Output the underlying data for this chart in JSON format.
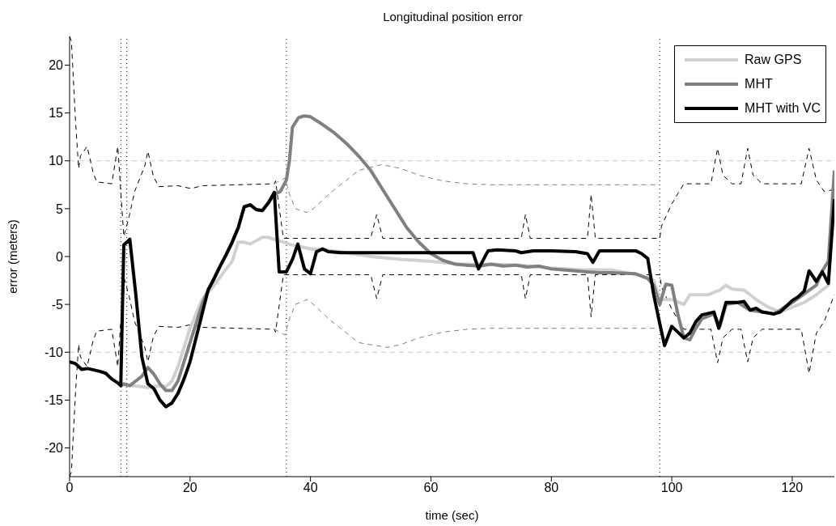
{
  "chart_data": {
    "type": "line",
    "title": "Longitudinal position error",
    "xlabel": "time (sec)",
    "ylabel": "error (meters)",
    "xlim": [
      0,
      127
    ],
    "xticks": [
      0,
      20,
      40,
      60,
      80,
      100,
      120
    ],
    "ylim": [
      -23,
      23
    ],
    "yticks": [
      -20,
      -15,
      -10,
      -5,
      0,
      5,
      10,
      15,
      20
    ],
    "grid": false,
    "legend": "top right",
    "marker": "none",
    "ref_lines": [
      {
        "axis": "y",
        "value": 10,
        "color": "#c8c8c8",
        "line_style": "dashed"
      },
      {
        "axis": "y",
        "value": -10,
        "color": "#c8c8c8",
        "line_style": "dashed"
      },
      {
        "axis": "x",
        "value": 8.5,
        "color": "#000000",
        "line_style": "dotted"
      },
      {
        "axis": "x",
        "value": 9.5,
        "color": "#000000",
        "line_style": "dotted"
      },
      {
        "axis": "x",
        "value": 36,
        "color": "#000000",
        "line_style": "dotted"
      },
      {
        "axis": "x",
        "value": 98,
        "color": "#000000",
        "line_style": "dotted"
      }
    ],
    "series": [
      {
        "color": "#000000",
        "line_style": "dashed",
        "x": [
          0,
          0.3,
          1,
          1.5,
          1.8,
          2.9,
          3.9,
          4.5,
          7,
          8,
          9,
          9.9,
          10.8,
          12.5,
          13,
          13.9,
          14.8,
          18,
          20.2,
          22,
          34,
          34.2,
          35.5,
          36,
          50,
          51,
          52,
          75,
          75.7,
          76.5,
          86,
          86.6,
          87.3,
          98,
          98.3,
          100,
          102,
          106.5,
          107.6,
          108.5,
          110,
          111.5,
          112.6,
          113.5,
          115,
          121.5,
          122.8,
          124,
          125.3,
          127
        ],
        "values": [
          23,
          22.5,
          14,
          9.2,
          10.5,
          11.5,
          8.8,
          7.8,
          7.6,
          11.5,
          2.1,
          4.2,
          6.8,
          9.5,
          11,
          8.4,
          7.3,
          7.4,
          7.1,
          7.4,
          7.6,
          7.9,
          1.9,
          1.9,
          1.9,
          4.4,
          1.9,
          1.9,
          4.4,
          1.9,
          1.9,
          6.5,
          1.9,
          1.9,
          3.2,
          5.5,
          7.6,
          7.6,
          11.3,
          8.5,
          7.6,
          7.6,
          11.3,
          8.5,
          7.6,
          7.6,
          11.3,
          8,
          6.8,
          7
        ]
      },
      {
        "color": "#000000",
        "line_style": "dashed",
        "x": [
          0,
          0.3,
          1,
          1.5,
          1.8,
          2.9,
          3.9,
          4.5,
          7,
          8,
          9,
          9.9,
          10.8,
          12.5,
          13,
          13.9,
          14.8,
          18,
          20.2,
          22,
          34,
          34.2,
          35.5,
          36,
          50,
          51,
          52,
          75,
          75.7,
          76.5,
          86,
          86.6,
          87.3,
          98,
          98.3,
          100,
          102,
          106.5,
          107.6,
          108.5,
          110,
          111.5,
          112.6,
          113.5,
          115,
          121.5,
          122.8,
          124,
          125.3,
          127
        ],
        "values": [
          -23,
          -22.5,
          -14,
          -9.2,
          -10.5,
          -11.5,
          -8.8,
          -7.8,
          -7.6,
          -11.5,
          -2.1,
          -4.2,
          -6.8,
          -9.5,
          -11,
          -8.4,
          -7.3,
          -7.4,
          -7.1,
          -7.4,
          -7.6,
          -7.9,
          -1.9,
          -1.9,
          -1.9,
          -4.4,
          -1.9,
          -1.9,
          -4.4,
          -1.9,
          -1.9,
          -6.3,
          -1.9,
          -1.9,
          -3.2,
          -5.5,
          -7.6,
          -7.6,
          -11.1,
          -8.5,
          -7.6,
          -7.6,
          -11,
          -8.5,
          -7.6,
          -7.6,
          -12.2,
          -8,
          -6.8,
          -4
        ]
      },
      {
        "color": "#808080",
        "line_style": "dashed",
        "x": [
          34,
          35.8,
          36.5,
          37.5,
          39.4,
          40.5,
          43,
          46,
          48,
          51.8,
          55,
          58,
          62,
          66,
          70,
          98
        ],
        "values": [
          7.6,
          8.2,
          6.5,
          5,
          4.6,
          5,
          6.5,
          8,
          9,
          9.6,
          9.2,
          8.5,
          7.9,
          7.6,
          7.5,
          7.5
        ]
      },
      {
        "color": "#808080",
        "line_style": "dashed",
        "x": [
          34,
          35.8,
          36.5,
          37.5,
          39.4,
          40.5,
          43,
          46,
          48,
          52.8,
          55,
          58,
          62,
          66,
          70,
          98
        ],
        "values": [
          -7.6,
          -8.2,
          -6.5,
          -5,
          -4.5,
          -5,
          -6.5,
          -8,
          -9,
          -9.5,
          -9.2,
          -8.5,
          -7.9,
          -7.6,
          -7.5,
          -7.5
        ]
      },
      {
        "name": "Raw GPS",
        "color": "#d0d0d0",
        "line_style": "solid",
        "x": [
          8.5,
          9,
          12,
          13,
          15,
          16,
          17,
          18,
          19,
          20,
          21,
          22,
          24,
          26,
          27,
          28,
          29,
          30,
          32,
          33,
          35,
          37,
          40,
          45,
          50,
          55,
          60,
          65,
          70,
          75,
          80,
          85,
          90,
          95,
          97,
          98,
          100,
          102,
          103,
          106,
          108,
          109,
          110,
          112,
          114,
          116,
          118,
          120,
          122,
          124,
          126,
          127
        ],
        "values": [
          -13.5,
          -13.4,
          -13.6,
          -13.7,
          -13.5,
          -13.6,
          -13,
          -11.5,
          -9.5,
          -7.5,
          -6,
          -4.5,
          -3,
          -1.3,
          -0.5,
          1.5,
          1.5,
          1.3,
          2,
          2,
          1.6,
          1.2,
          0.8,
          0.5,
          0,
          -0.3,
          -0.5,
          -0.8,
          -0.8,
          -0.9,
          -1.2,
          -1.4,
          -1.4,
          -2,
          -2.5,
          -4.5,
          -4.5,
          -5,
          -4,
          -4,
          -3.5,
          -3,
          -3.4,
          -3.5,
          -4.5,
          -5.3,
          -5.8,
          -5.3,
          -4.8,
          -4,
          -3,
          8
        ]
      },
      {
        "name": "MHT",
        "color": "#808080",
        "line_style": "solid",
        "x": [
          8.5,
          9,
          10,
          11,
          12,
          13,
          14,
          15,
          16,
          17,
          18,
          19,
          20,
          21,
          22,
          23,
          24,
          25,
          26,
          27,
          28,
          29,
          30,
          31,
          32,
          33,
          34,
          35,
          36,
          36.5,
          37,
          38,
          39,
          40,
          42,
          44,
          46,
          48,
          50,
          52,
          54,
          56,
          58,
          60,
          62,
          64,
          66,
          68,
          70,
          72,
          74,
          76,
          78,
          80,
          82,
          84,
          86,
          88,
          90,
          94,
          96,
          97,
          98,
          99,
          100,
          101,
          102,
          103,
          104,
          105,
          107,
          108,
          109,
          111,
          113,
          115,
          117,
          120,
          124,
          125,
          126,
          127
        ],
        "values": [
          -13.5,
          -13.3,
          -13.5,
          -13,
          -12.5,
          -11.6,
          -12.3,
          -13.3,
          -14,
          -14,
          -13,
          -11,
          -9,
          -7,
          -5,
          -3.5,
          -2.3,
          -1,
          0.2,
          1.5,
          3,
          5.2,
          5.4,
          4.9,
          4.8,
          5.6,
          6.5,
          6.8,
          8,
          10,
          13.5,
          14.5,
          14.7,
          14.6,
          13.8,
          12.9,
          11.8,
          10.5,
          9,
          7,
          5,
          3,
          1.5,
          0.3,
          -0.4,
          -0.8,
          -0.9,
          -1,
          -0.8,
          -1,
          -0.9,
          -1.1,
          -1,
          -1.3,
          -1.4,
          -1.5,
          -1.6,
          -1.7,
          -1.7,
          -1.8,
          -2.3,
          -3,
          -5,
          -2.9,
          -3,
          -6,
          -8.5,
          -8.7,
          -7.5,
          -6.5,
          -6,
          -7.3,
          -5,
          -4.8,
          -5.6,
          -5.8,
          -6,
          -4.8,
          -3,
          -1.5,
          -0.5,
          9
        ]
      },
      {
        "name": "MHT with VC",
        "color": "#000000",
        "line_style": "solid",
        "x": [
          0,
          1,
          2,
          3,
          5,
          6,
          7,
          8,
          8.5,
          9,
          10,
          11,
          12,
          13,
          14,
          15,
          16,
          17,
          18,
          19,
          20,
          21,
          22,
          23,
          24,
          25,
          26,
          27,
          28,
          29,
          30,
          31,
          32,
          33,
          34,
          34.8,
          36,
          37,
          37.9,
          39,
          40,
          41,
          42,
          43,
          45,
          67,
          67.9,
          69.5,
          71,
          74,
          75,
          77,
          80,
          84,
          86,
          86.9,
          88,
          92,
          94,
          95,
          96,
          97,
          98,
          98.8,
          100,
          101,
          102,
          103,
          104,
          105,
          107,
          107.8,
          109,
          111,
          112,
          113,
          114,
          115,
          117,
          118,
          119,
          120,
          121,
          122,
          122.8,
          124,
          125,
          126,
          127
        ],
        "values": [
          -11,
          -11.2,
          -11.8,
          -11.7,
          -12,
          -12.2,
          -12.8,
          -13.2,
          -13.5,
          1.2,
          1.8,
          -4,
          -10.5,
          -13.3,
          -13.8,
          -15,
          -15.7,
          -15.3,
          -14.3,
          -12.8,
          -11,
          -8.5,
          -6,
          -3.5,
          -2.3,
          -1,
          0.2,
          1.5,
          3,
          5.2,
          5.4,
          4.9,
          4.8,
          5.6,
          6.7,
          -1.6,
          -1.6,
          -0.3,
          1.3,
          -1.3,
          -1.8,
          0.5,
          0.8,
          0.5,
          0.4,
          0.4,
          -1.3,
          0.6,
          0.7,
          0.6,
          0.4,
          0.6,
          0.6,
          0.5,
          0.3,
          -0.6,
          0.6,
          0.6,
          0.6,
          0.3,
          -0.2,
          -4,
          -7,
          -9.3,
          -7.3,
          -7.9,
          -8.5,
          -8,
          -6.8,
          -6.1,
          -5.8,
          -7.5,
          -4.8,
          -4.8,
          -4.7,
          -5.6,
          -5.4,
          -5.8,
          -6,
          -5.8,
          -5.2,
          -4.6,
          -4.2,
          -3.6,
          -1.5,
          -2.6,
          -1.6,
          -2.8,
          6
        ]
      }
    ]
  }
}
